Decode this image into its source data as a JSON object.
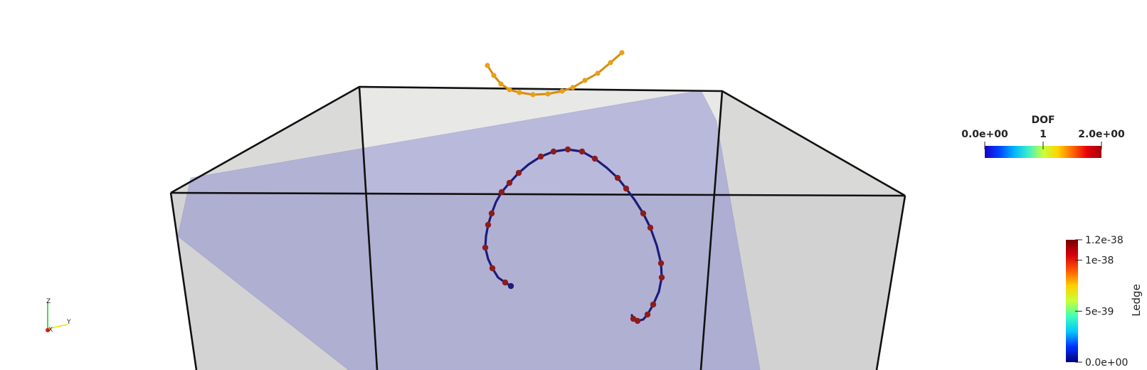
{
  "dof_colorbar": {
    "title": "DOF",
    "min_label": "0.0e+00",
    "mid_label": "1",
    "max_label": "2.0e+00",
    "range": [
      0,
      2
    ],
    "colormap": [
      "#1a00c8",
      "#0044ff",
      "#00b4ff",
      "#3fefc8",
      "#c8ff3c",
      "#ffd400",
      "#ff6a00",
      "#e8000a",
      "#a0000e"
    ]
  },
  "ledge_colorbar": {
    "title": "Ledge",
    "tick_labels": [
      "1.2e-38",
      "1e-38",
      "5e-39",
      "0.0e+00"
    ],
    "tick_values": [
      1.2e-38,
      1e-38,
      5e-39,
      0
    ],
    "range": [
      0,
      1.2e-38
    ],
    "colormap": [
      "#00007a",
      "#0030ff",
      "#00c8ff",
      "#40ffb8",
      "#c8ff38",
      "#ffd000",
      "#ff5800",
      "#d6000c",
      "#780000"
    ]
  },
  "orientation_axes": {
    "z_label": "Z",
    "y_label": "Y",
    "x_label": "X",
    "z_color": "#22cc22",
    "y_color": "#e6e600",
    "x_color": "#cc2222"
  },
  "scene_colors": {
    "box_fill": "#d6d6d6",
    "box_top_fill": "#e8e8e6",
    "box_edge": "#111111",
    "plane_fill": "#8c8cd2",
    "spiral_line": "#1c1c7a",
    "spiral_node": "#8c1c1c",
    "arc_line": "#d88c0c",
    "arc_node": "#e8a018"
  }
}
